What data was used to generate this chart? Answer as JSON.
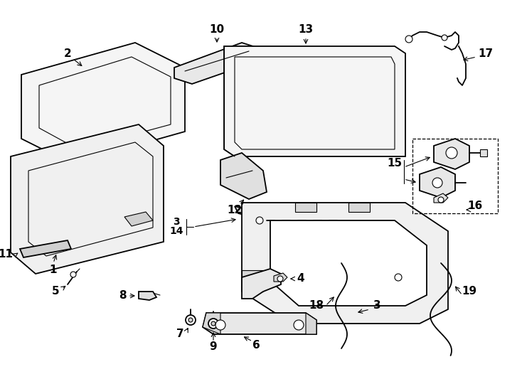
{
  "background_color": "#ffffff",
  "line_color": "#000000",
  "lw": 1.3,
  "lw_thin": 0.8,
  "fig_w": 7.34,
  "fig_h": 5.4,
  "dpi": 100
}
